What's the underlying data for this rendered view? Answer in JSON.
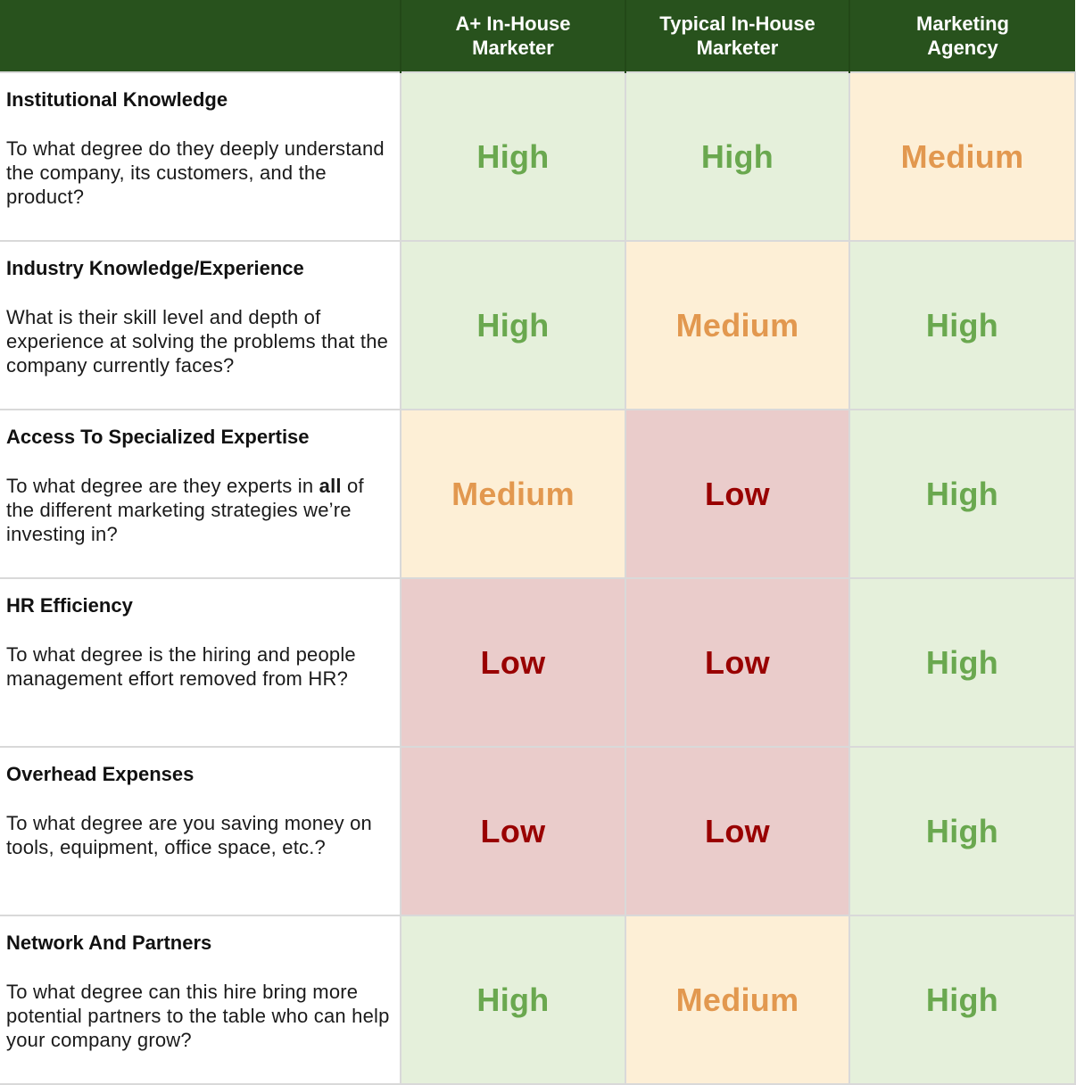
{
  "header": {
    "columns": [
      {
        "line1": "A+ In-House",
        "line2": "Marketer"
      },
      {
        "line1": "Typical In-House",
        "line2": "Marketer"
      },
      {
        "line1": "Marketing",
        "line2": "Agency"
      }
    ]
  },
  "rows": [
    {
      "title": "Institutional Knowledge",
      "desc_pre": "To what degree do they deeply understand the company, its customers, and the product?",
      "desc_bold": "",
      "desc_post": "",
      "ratings": [
        "High",
        "High",
        "Medium"
      ]
    },
    {
      "title": "Industry Knowledge/Experience",
      "desc_pre": "What is their skill level and depth of experience at solving the problems that the company currently faces?",
      "desc_bold": "",
      "desc_post": "",
      "ratings": [
        "High",
        "Medium",
        "High"
      ]
    },
    {
      "title": "Access To Specialized Expertise",
      "desc_pre": "To what degree are they experts in ",
      "desc_bold": "all",
      "desc_post": " of the different marketing strategies we’re investing in?",
      "ratings": [
        "Medium",
        "Low",
        "High"
      ]
    },
    {
      "title": "HR Efficiency",
      "desc_pre": "To what degree is the hiring and people management effort removed from HR?",
      "desc_bold": "",
      "desc_post": "",
      "ratings": [
        "Low",
        "Low",
        "High"
      ]
    },
    {
      "title": "Overhead Expenses",
      "desc_pre": "To what degree are you saving money on tools, equipment, office space, etc.?",
      "desc_bold": "",
      "desc_post": "",
      "ratings": [
        "Low",
        "Low",
        "High"
      ]
    },
    {
      "title": "Network And Partners",
      "desc_pre": "To what degree can this hire bring more potential partners to the table who can help your company grow?",
      "desc_bold": "",
      "desc_post": "",
      "ratings": [
        "High",
        "Medium",
        "High"
      ]
    }
  ],
  "colors": {
    "header_bg": "#28521d",
    "high_bg": "#e5f0db",
    "high_text": "#6aa84f",
    "medium_bg": "#fdefd6",
    "medium_text": "#e2984f",
    "low_bg": "#eacccb",
    "low_text": "#990000"
  }
}
